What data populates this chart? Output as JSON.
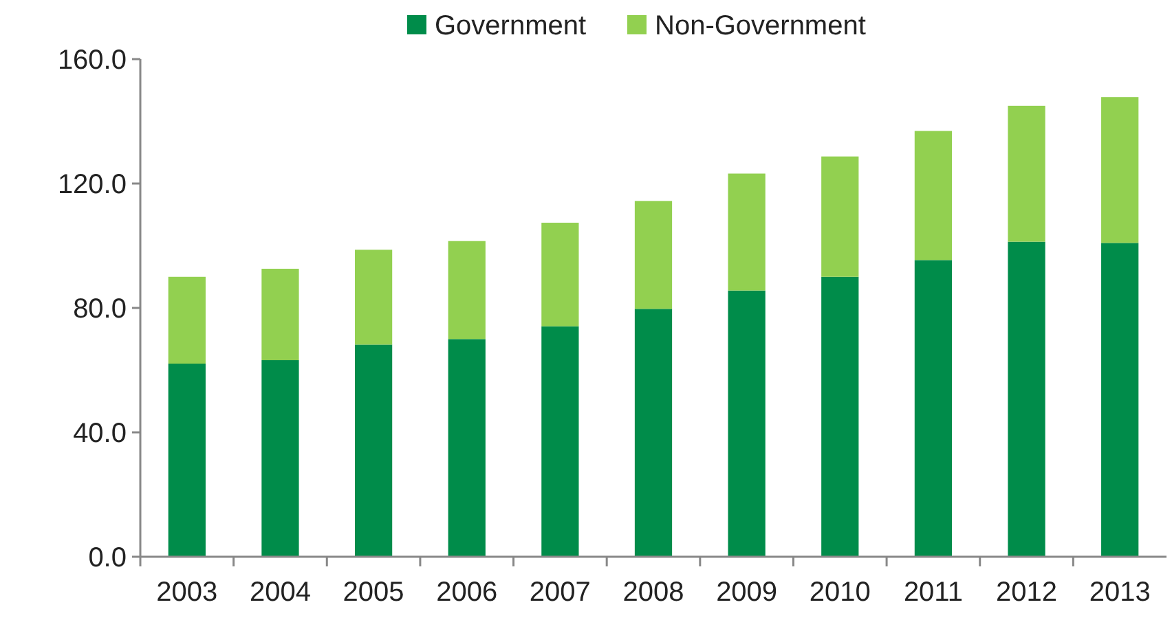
{
  "chart_data": {
    "type": "bar",
    "stacked": true,
    "categories": [
      "2003",
      "2004",
      "2005",
      "2006",
      "2007",
      "2008",
      "2009",
      "2010",
      "2011",
      "2012",
      "2013"
    ],
    "series": [
      {
        "name": "Government",
        "color": "#008c4a",
        "values": [
          62.1,
          63.2,
          68.2,
          70.0,
          74.1,
          79.7,
          85.6,
          90.0,
          95.4,
          101.3,
          100.9
        ]
      },
      {
        "name": "Non-Government",
        "color": "#92d050",
        "values": [
          27.9,
          29.4,
          30.5,
          31.5,
          33.3,
          34.7,
          37.6,
          38.7,
          41.5,
          43.7,
          46.9
        ]
      }
    ],
    "ylim": [
      0,
      160
    ],
    "yticks": [
      {
        "value": 0,
        "label": "0.0"
      },
      {
        "value": 40,
        "label": "40.0"
      },
      {
        "value": 80,
        "label": "80.0"
      },
      {
        "value": 120,
        "label": "120.0"
      },
      {
        "value": 160,
        "label": "160.0"
      }
    ],
    "grid": false,
    "legend": "top"
  }
}
